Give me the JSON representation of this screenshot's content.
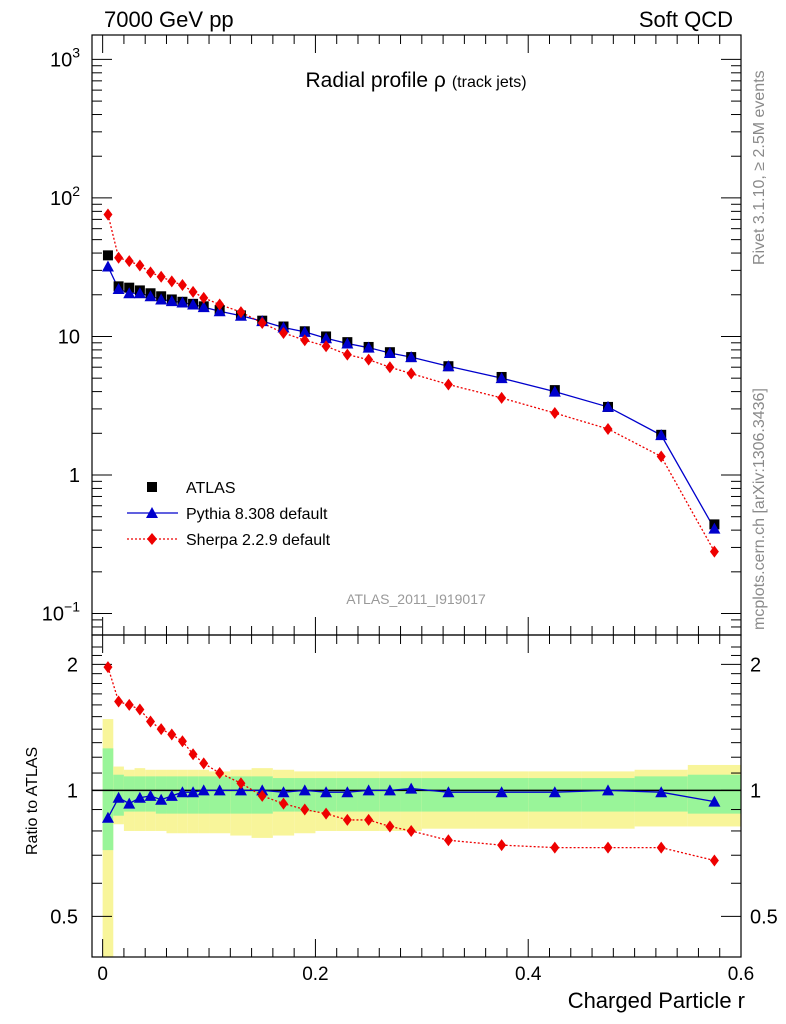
{
  "header": {
    "left": "7000 GeV pp",
    "right": "Soft QCD"
  },
  "side_labels": {
    "rivet": "Rivet 3.1.10, ≥ 2.5M events",
    "mcplots": "mcplots.cern.ch [arXiv:1306.3436]"
  },
  "chart_data": {
    "type": "scatter",
    "title": "Radial profile ρ",
    "title_suffix": "(track jets)",
    "analysis_tag": "ATLAS_2011_I919017",
    "xlabel": "Charged Particle r",
    "xlim": [
      -0.01,
      0.6
    ],
    "x_ticks": [
      "0",
      "0.2",
      "0.4",
      "0.6"
    ],
    "main_panel": {
      "yscale": "log",
      "ylim": [
        0.07,
        1500
      ],
      "y_ticks": [
        {
          "base": "10",
          "exp": "3",
          "value": 1000
        },
        {
          "base": "10",
          "exp": "2",
          "value": 100
        },
        {
          "base": "10",
          "exp": "",
          "value": 10
        },
        {
          "base": "1",
          "exp": "",
          "value": 1
        },
        {
          "base": "10",
          "exp": "−1",
          "value": 0.1
        }
      ]
    },
    "ratio_panel": {
      "ylabel": "Ratio to ATLAS",
      "yscale": "log",
      "ylim": [
        0.4,
        2.35
      ],
      "y_ticks": [
        "2",
        "1",
        "0.5"
      ],
      "reference": 1
    },
    "legend": {
      "placement": "bottom-left",
      "entries": [
        "ATLAS",
        "Pythia 8.308 default",
        "Sherpa 2.2.9 default"
      ]
    },
    "colors": {
      "atlas": "#000000",
      "pythia": "#0000cc",
      "sherpa": "#ee0000",
      "band_inner": "#99f599",
      "band_outer": "#f8f59a"
    },
    "x": [
      0.005,
      0.015,
      0.025,
      0.035,
      0.045,
      0.055,
      0.065,
      0.075,
      0.085,
      0.095,
      0.11,
      0.13,
      0.15,
      0.17,
      0.19,
      0.21,
      0.23,
      0.25,
      0.27,
      0.29,
      0.325,
      0.375,
      0.425,
      0.475,
      0.525,
      0.575
    ],
    "x_edges": [
      0,
      0.01,
      0.02,
      0.03,
      0.04,
      0.05,
      0.06,
      0.07,
      0.08,
      0.09,
      0.1,
      0.12,
      0.14,
      0.16,
      0.18,
      0.2,
      0.22,
      0.24,
      0.26,
      0.28,
      0.3,
      0.35,
      0.4,
      0.45,
      0.5,
      0.55,
      0.6
    ],
    "series": [
      {
        "name": "ATLAS",
        "marker": "square",
        "values": [
          38.5,
          23,
          22.5,
          21.5,
          20.5,
          19.5,
          18.5,
          17.8,
          17.2,
          16.5,
          15.5,
          14.2,
          13,
          11.8,
          10.9,
          10,
          9.1,
          8.4,
          7.7,
          7.1,
          6.1,
          5.1,
          4.1,
          3.1,
          1.95,
          0.44
        ]
      },
      {
        "name": "Pythia 8.308 default",
        "marker": "triangle",
        "line": "solid",
        "values": [
          32,
          22,
          20.5,
          20.5,
          19.5,
          18.5,
          18,
          17.6,
          17,
          16.3,
          15.2,
          14.1,
          12.9,
          11.6,
          10.8,
          9.7,
          8.9,
          8.3,
          7.6,
          7.1,
          6.1,
          5,
          4,
          3.1,
          1.94,
          0.41
        ]
      },
      {
        "name": "Sherpa 2.2.9 default",
        "marker": "diamond",
        "line": "dotted",
        "values": [
          76,
          37,
          35,
          32.5,
          29,
          27,
          25,
          23.5,
          21,
          19,
          17,
          15,
          12.5,
          10.6,
          9.4,
          8.5,
          7.4,
          6.8,
          6,
          5.4,
          4.5,
          3.6,
          2.8,
          2.15,
          1.36,
          0.28
        ]
      }
    ],
    "ratio_series": [
      {
        "name": "Pythia 8.308 default",
        "values": [
          0.86,
          0.96,
          0.93,
          0.96,
          0.97,
          0.95,
          0.97,
          0.99,
          0.99,
          1.0,
          1.0,
          1.0,
          1.0,
          0.99,
          1.0,
          0.99,
          0.99,
          1.0,
          1.0,
          1.01,
          0.99,
          0.99,
          0.99,
          1.0,
          0.99,
          0.94
        ]
      },
      {
        "name": "Sherpa 2.2.9 default",
        "values": [
          1.97,
          1.63,
          1.6,
          1.56,
          1.46,
          1.4,
          1.36,
          1.31,
          1.22,
          1.16,
          1.1,
          1.04,
          0.97,
          0.93,
          0.9,
          0.88,
          0.85,
          0.85,
          0.82,
          0.8,
          0.76,
          0.74,
          0.73,
          0.73,
          0.73,
          0.68
        ]
      }
    ],
    "band_inner": {
      "lo": [
        0.72,
        0.87,
        0.89,
        0.89,
        0.89,
        0.88,
        0.88,
        0.88,
        0.88,
        0.88,
        0.88,
        0.88,
        0.88,
        0.89,
        0.89,
        0.89,
        0.89,
        0.89,
        0.89,
        0.89,
        0.89,
        0.89,
        0.89,
        0.89,
        0.89,
        0.88
      ],
      "hi": [
        1.26,
        1.09,
        1.08,
        1.08,
        1.08,
        1.08,
        1.08,
        1.08,
        1.08,
        1.08,
        1.08,
        1.08,
        1.08,
        1.07,
        1.07,
        1.07,
        1.07,
        1.07,
        1.07,
        1.07,
        1.07,
        1.07,
        1.07,
        1.07,
        1.08,
        1.09
      ]
    },
    "band_outer": {
      "lo": [
        0.38,
        0.83,
        0.8,
        0.8,
        0.8,
        0.8,
        0.79,
        0.79,
        0.79,
        0.79,
        0.79,
        0.78,
        0.77,
        0.78,
        0.79,
        0.8,
        0.8,
        0.8,
        0.8,
        0.8,
        0.81,
        0.81,
        0.81,
        0.81,
        0.82,
        0.82
      ],
      "hi": [
        1.48,
        1.14,
        1.12,
        1.13,
        1.12,
        1.12,
        1.12,
        1.12,
        1.12,
        1.12,
        1.11,
        1.12,
        1.13,
        1.12,
        1.11,
        1.11,
        1.11,
        1.11,
        1.11,
        1.11,
        1.11,
        1.11,
        1.11,
        1.11,
        1.12,
        1.15
      ]
    }
  }
}
